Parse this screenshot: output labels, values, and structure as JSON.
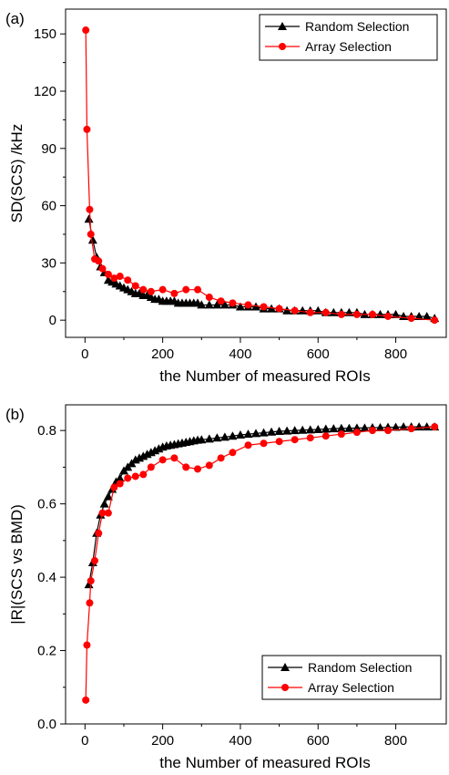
{
  "chart_data": [
    {
      "panel_label": "(a)",
      "type": "line",
      "xlabel": "the Number of measured ROIs",
      "ylabel": "SD(SCS) /kHz",
      "xlim": [
        -50,
        930
      ],
      "ylim": [
        -9,
        163
      ],
      "xticks": [
        "0",
        "200",
        "400",
        "600",
        "800"
      ],
      "yticks": [
        "0",
        "30",
        "60",
        "90",
        "120",
        "150"
      ],
      "xtick_values": [
        0,
        200,
        400,
        600,
        800
      ],
      "ytick_values": [
        0,
        30,
        60,
        90,
        120,
        150
      ],
      "legend_position": "top-right",
      "series": [
        {
          "name": "Random Selection",
          "color": "#000000",
          "marker": "triangle",
          "x": [
            10,
            20,
            30,
            40,
            50,
            60,
            70,
            80,
            90,
            100,
            110,
            120,
            130,
            140,
            150,
            160,
            170,
            180,
            190,
            200,
            210,
            220,
            230,
            240,
            250,
            260,
            270,
            280,
            290,
            300,
            320,
            340,
            360,
            380,
            400,
            420,
            440,
            460,
            480,
            500,
            520,
            540,
            560,
            580,
            600,
            620,
            640,
            660,
            680,
            700,
            720,
            740,
            760,
            780,
            800,
            820,
            840,
            860,
            880,
            900
          ],
          "y": [
            53,
            42,
            33,
            28,
            25,
            21,
            20,
            19,
            18,
            17,
            16,
            15,
            14,
            14,
            13,
            13,
            12,
            11,
            11,
            10,
            10,
            10,
            10,
            9,
            9,
            9,
            9,
            9,
            9,
            8,
            8,
            8,
            8,
            8,
            7,
            7,
            7,
            6,
            6,
            6,
            5,
            5,
            5,
            5,
            5,
            4,
            4,
            4,
            4,
            4,
            3,
            3,
            3,
            3,
            3,
            2,
            2,
            2,
            2,
            1
          ]
        },
        {
          "name": "Array Selection",
          "color": "#ff0000",
          "marker": "circle",
          "x": [
            2,
            5,
            12,
            15,
            25,
            35,
            45,
            60,
            75,
            90,
            110,
            130,
            150,
            170,
            200,
            230,
            260,
            290,
            320,
            350,
            380,
            420,
            460,
            500,
            540,
            580,
            620,
            660,
            700,
            740,
            780,
            840,
            900
          ],
          "y": [
            152,
            100,
            58,
            45,
            32,
            31,
            27,
            24,
            22,
            23,
            21,
            18,
            16,
            15,
            16,
            14,
            16,
            16,
            12,
            10,
            9,
            8,
            7,
            6,
            5,
            4,
            4,
            3,
            3,
            3,
            2,
            1,
            0
          ]
        }
      ]
    },
    {
      "panel_label": "(b)",
      "type": "line",
      "xlabel": "the Number of measured ROIs",
      "ylabel": "|R|(SCS vs BMD)",
      "xlim": [
        -50,
        930
      ],
      "ylim": [
        0,
        0.87
      ],
      "xticks": [
        "0",
        "200",
        "400",
        "600",
        "800"
      ],
      "yticks": [
        "0.0",
        "0.2",
        "0.4",
        "0.6",
        "0.8"
      ],
      "xtick_values": [
        0,
        200,
        400,
        600,
        800
      ],
      "ytick_values": [
        0,
        0.2,
        0.4,
        0.6,
        0.8
      ],
      "legend_position": "bottom-right",
      "series": [
        {
          "name": "Random Selection",
          "color": "#000000",
          "marker": "triangle",
          "x": [
            10,
            20,
            30,
            40,
            50,
            60,
            70,
            80,
            90,
            100,
            110,
            120,
            130,
            140,
            150,
            160,
            170,
            180,
            190,
            200,
            210,
            220,
            230,
            240,
            250,
            260,
            270,
            280,
            290,
            300,
            320,
            340,
            360,
            380,
            400,
            420,
            440,
            460,
            480,
            500,
            520,
            540,
            560,
            580,
            600,
            620,
            640,
            660,
            680,
            700,
            720,
            740,
            760,
            780,
            800,
            820,
            840,
            860,
            880,
            900
          ],
          "y": [
            0.38,
            0.44,
            0.52,
            0.57,
            0.6,
            0.62,
            0.64,
            0.66,
            0.67,
            0.69,
            0.7,
            0.71,
            0.72,
            0.725,
            0.73,
            0.735,
            0.74,
            0.745,
            0.75,
            0.755,
            0.758,
            0.76,
            0.762,
            0.764,
            0.766,
            0.768,
            0.77,
            0.772,
            0.774,
            0.775,
            0.777,
            0.78,
            0.782,
            0.785,
            0.788,
            0.79,
            0.792,
            0.794,
            0.796,
            0.798,
            0.799,
            0.8,
            0.801,
            0.802,
            0.803,
            0.804,
            0.805,
            0.806,
            0.806,
            0.807,
            0.807,
            0.808,
            0.808,
            0.809,
            0.809,
            0.81,
            0.81,
            0.81,
            0.81,
            0.81
          ]
        },
        {
          "name": "Array Selection",
          "color": "#ff0000",
          "marker": "circle",
          "x": [
            2,
            5,
            12,
            15,
            25,
            35,
            45,
            60,
            75,
            90,
            110,
            130,
            150,
            170,
            200,
            230,
            260,
            290,
            320,
            350,
            380,
            420,
            460,
            500,
            540,
            580,
            620,
            660,
            700,
            740,
            780,
            840,
            900
          ],
          "y": [
            0.065,
            0.215,
            0.33,
            0.39,
            0.445,
            0.52,
            0.575,
            0.575,
            0.645,
            0.655,
            0.67,
            0.675,
            0.68,
            0.7,
            0.72,
            0.725,
            0.7,
            0.695,
            0.705,
            0.725,
            0.74,
            0.76,
            0.765,
            0.77,
            0.775,
            0.78,
            0.785,
            0.79,
            0.795,
            0.8,
            0.8,
            0.805,
            0.81
          ]
        }
      ]
    }
  ]
}
